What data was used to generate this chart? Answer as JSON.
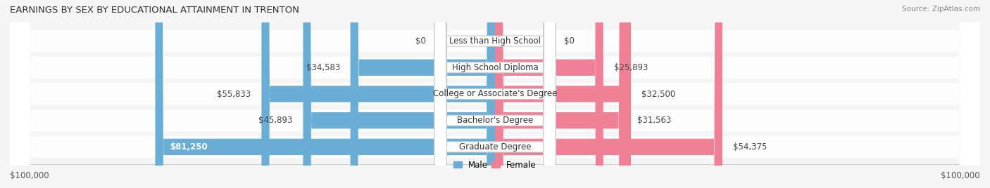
{
  "title": "EARNINGS BY SEX BY EDUCATIONAL ATTAINMENT IN TRENTON",
  "source": "Source: ZipAtlas.com",
  "categories": [
    "Less than High School",
    "High School Diploma",
    "College or Associate's Degree",
    "Bachelor's Degree",
    "Graduate Degree"
  ],
  "male_values": [
    0,
    34583,
    55833,
    45893,
    81250
  ],
  "female_values": [
    0,
    25893,
    32500,
    31563,
    54375
  ],
  "male_labels": [
    "$0",
    "$34,583",
    "$55,833",
    "$45,893",
    "$81,250"
  ],
  "female_labels": [
    "$0",
    "$25,893",
    "$32,500",
    "$31,563",
    "$54,375"
  ],
  "male_label_inside": [
    false,
    false,
    false,
    false,
    true
  ],
  "female_label_inside": [
    false,
    false,
    false,
    false,
    false
  ],
  "male_color": "#6aaed6",
  "female_color": "#f08096",
  "max_value": 100000,
  "xlabel_left": "$100,000",
  "xlabel_right": "$100,000",
  "legend_male": "Male",
  "legend_female": "Female",
  "background_color": "#f5f5f5",
  "row_bg_color": "#e0e0e0",
  "title_fontsize": 9.5,
  "label_fontsize": 8.5,
  "category_fontsize": 8.5
}
